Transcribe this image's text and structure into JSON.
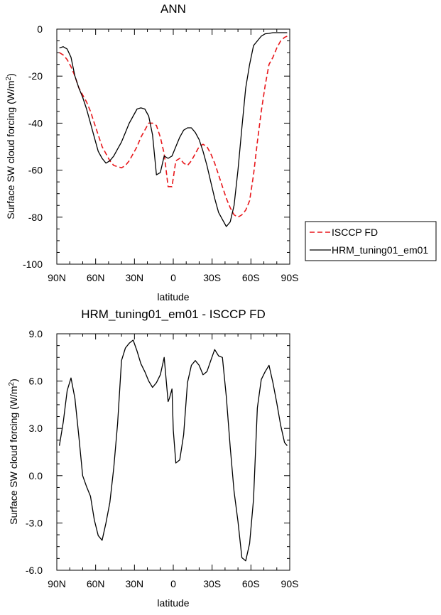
{
  "colors": {
    "isccp": "#e8171b",
    "model": "#000000",
    "axis": "#000000"
  },
  "chart_data": [
    {
      "type": "line",
      "title": "ANN",
      "xlabel": "latitude",
      "ylabel_main": "Surface SW cloud forcing (W/m",
      "ylabel_sup": "2",
      "ylabel_end": ")",
      "xlim": [
        90,
        -90
      ],
      "ylim": [
        -100,
        0
      ],
      "xticks": [
        {
          "v": 90,
          "label": "90N"
        },
        {
          "v": 60,
          "label": "60N"
        },
        {
          "v": 30,
          "label": "30N"
        },
        {
          "v": 0,
          "label": "0"
        },
        {
          "v": -30,
          "label": "30S"
        },
        {
          "v": -60,
          "label": "60S"
        },
        {
          "v": -90,
          "label": "90S"
        }
      ],
      "yticks": [
        {
          "v": 0,
          "label": "0"
        },
        {
          "v": -20,
          "label": "-20"
        },
        {
          "v": -40,
          "label": "-40"
        },
        {
          "v": -60,
          "label": "-60"
        },
        {
          "v": -80,
          "label": "-80"
        },
        {
          "v": -100,
          "label": "-100"
        }
      ],
      "legend": [
        "ISCCP FD",
        "HRM_tuning01_em01"
      ],
      "legend_position": "right",
      "series": [
        {
          "name": "ISCCP FD",
          "style": "dashed",
          "x": [
            88,
            85,
            82,
            79,
            76,
            73,
            70,
            67,
            64,
            61,
            58,
            55,
            52,
            49,
            46,
            43,
            40,
            37,
            34,
            31,
            28,
            25,
            22,
            19,
            16,
            13,
            10,
            7,
            4,
            1,
            -2,
            -5,
            -8,
            -11,
            -14,
            -17,
            -20,
            -23,
            -26,
            -29,
            -32,
            -35,
            -38,
            -41,
            -44,
            -47,
            -50,
            -53,
            -56,
            -59,
            -62,
            -65,
            -68,
            -71,
            -74,
            -77,
            -80,
            -83,
            -86,
            -88
          ],
          "y": [
            -10,
            -11,
            -13,
            -16,
            -20,
            -25,
            -28,
            -31,
            -35,
            -40,
            -45,
            -50,
            -53,
            -56,
            -58,
            -58.5,
            -59,
            -58,
            -56,
            -53,
            -50,
            -46,
            -43,
            -40,
            -40,
            -41,
            -46,
            -53,
            -67,
            -67,
            -56,
            -55,
            -57,
            -58,
            -56,
            -53,
            -50,
            -49,
            -50,
            -53,
            -57,
            -62,
            -67,
            -72,
            -76,
            -79,
            -80,
            -79,
            -77,
            -73,
            -62,
            -48,
            -35,
            -24,
            -15,
            -12,
            -8,
            -5,
            -3.5,
            -3
          ]
        },
        {
          "name": "HRM_tuning01_em01",
          "style": "solid",
          "x": [
            88,
            85,
            82,
            79,
            76,
            73,
            70,
            67,
            64,
            61,
            58,
            55,
            52,
            49,
            46,
            43,
            40,
            37,
            34,
            31,
            28,
            25,
            22,
            19,
            16,
            13,
            10,
            7,
            4,
            1,
            -2,
            -5,
            -8,
            -11,
            -14,
            -17,
            -20,
            -23,
            -26,
            -29,
            -32,
            -35,
            -38,
            -41,
            -44,
            -47,
            -50,
            -53,
            -56,
            -59,
            -62,
            -65,
            -68,
            -71,
            -74,
            -77,
            -80,
            -83,
            -86,
            -88
          ],
          "y": [
            -8,
            -7.5,
            -8.5,
            -12,
            -20,
            -25,
            -29,
            -34,
            -40,
            -46,
            -52,
            -55,
            -57,
            -56,
            -54,
            -51,
            -48,
            -44,
            -40,
            -37,
            -34,
            -33.5,
            -34,
            -37,
            -45,
            -62,
            -61,
            -54,
            -55,
            -54,
            -50,
            -46,
            -43,
            -42,
            -42,
            -44,
            -47,
            -52,
            -58,
            -65,
            -72,
            -78,
            -81,
            -84,
            -82,
            -75,
            -60,
            -42,
            -25,
            -15,
            -7,
            -5,
            -3,
            -2,
            -1.8,
            -1.5,
            -1.5,
            -1.5,
            -1.5,
            -1.5
          ]
        }
      ]
    },
    {
      "type": "line",
      "title": "HRM_tuning01_em01 - ISCCP FD",
      "xlabel": "latitude",
      "ylabel_main": "Surface SW cloud forcing (W/m",
      "ylabel_sup": "2",
      "ylabel_end": ")",
      "xlim": [
        90,
        -90
      ],
      "ylim": [
        -6,
        9
      ],
      "xticks": [
        {
          "v": 90,
          "label": "90N"
        },
        {
          "v": 60,
          "label": "60N"
        },
        {
          "v": 30,
          "label": "30N"
        },
        {
          "v": 0,
          "label": "0"
        },
        {
          "v": -30,
          "label": "30S"
        },
        {
          "v": -60,
          "label": "60S"
        },
        {
          "v": -90,
          "label": "90S"
        }
      ],
      "yticks": [
        {
          "v": 9,
          "label": "9.0"
        },
        {
          "v": 6,
          "label": "6.0"
        },
        {
          "v": 3,
          "label": "3.0"
        },
        {
          "v": 0,
          "label": "0.0"
        },
        {
          "v": -3,
          "label": "-3.0"
        },
        {
          "v": -6,
          "label": "-6.0"
        }
      ],
      "series": [
        {
          "style": "solid",
          "x": [
            88,
            85,
            82,
            79,
            76,
            73,
            70,
            67,
            64,
            61,
            58,
            55,
            52,
            49,
            46,
            43,
            40,
            37,
            34,
            31,
            28,
            25,
            22,
            19,
            16,
            13,
            10,
            7,
            4,
            3,
            1,
            0,
            -2,
            -5,
            -8,
            -11,
            -14,
            -17,
            -20,
            -23,
            -26,
            -29,
            -32,
            -35,
            -38,
            -41,
            -44,
            -47,
            -50,
            -53,
            -56,
            -59,
            -62,
            -65,
            -68,
            -71,
            -74,
            -77,
            -80,
            -83,
            -86,
            -88
          ],
          "y": [
            1.9,
            3.4,
            5.4,
            6.2,
            4.9,
            2.5,
            0,
            -0.7,
            -1.3,
            -2.8,
            -3.8,
            -4.1,
            -3.0,
            -1.7,
            0.5,
            3.3,
            7.3,
            8.1,
            8.4,
            8.6,
            7.9,
            7.1,
            6.6,
            6.0,
            5.6,
            5.9,
            6.4,
            7.5,
            4.7,
            4.9,
            5.5,
            2.9,
            0.8,
            1.0,
            2.6,
            5.9,
            7.0,
            7.3,
            7.0,
            6.4,
            6.6,
            7.3,
            8.0,
            7.6,
            7.5,
            5.0,
            1.8,
            -1.0,
            -2.9,
            -5.2,
            -5.4,
            -4.3,
            -1.5,
            4.3,
            6.1,
            6.6,
            7.0,
            5.9,
            4.6,
            3.2,
            2.1,
            1.9
          ]
        }
      ]
    }
  ]
}
